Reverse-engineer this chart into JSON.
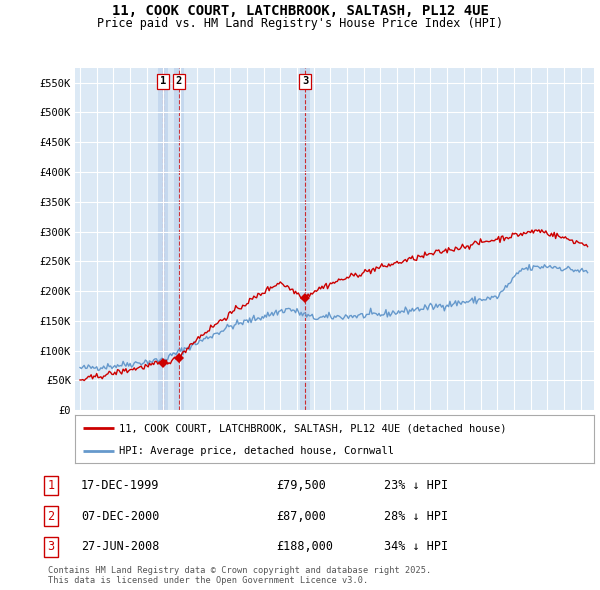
{
  "title_line1": "11, COOK COURT, LATCHBROOK, SALTASH, PL12 4UE",
  "title_line2": "Price paid vs. HM Land Registry's House Price Index (HPI)",
  "background_color": "#ffffff",
  "plot_bg_color": "#dce9f5",
  "grid_color": "#ffffff",
  "red_color": "#cc0000",
  "blue_color": "#6699cc",
  "vband_color": "#c5d8ee",
  "legend_red_label": "11, COOK COURT, LATCHBROOK, SALTASH, PL12 4UE (detached house)",
  "legend_blue_label": "HPI: Average price, detached house, Cornwall",
  "transactions": [
    {
      "num": 1,
      "date": "17-DEC-1999",
      "price": "£79,500",
      "pct": "23% ↓ HPI",
      "year": 1999.96,
      "value": 79500
    },
    {
      "num": 2,
      "date": "07-DEC-2000",
      "price": "£87,000",
      "pct": "28% ↓ HPI",
      "year": 2000.93,
      "value": 87000
    },
    {
      "num": 3,
      "date": "27-JUN-2008",
      "price": "£188,000",
      "pct": "34% ↓ HPI",
      "year": 2008.49,
      "value": 188000
    }
  ],
  "ylim": [
    0,
    575000
  ],
  "yticks": [
    0,
    50000,
    100000,
    150000,
    200000,
    250000,
    300000,
    350000,
    400000,
    450000,
    500000,
    550000
  ],
  "ytick_labels": [
    "£0",
    "£50K",
    "£100K",
    "£150K",
    "£200K",
    "£250K",
    "£300K",
    "£350K",
    "£400K",
    "£450K",
    "£500K",
    "£550K"
  ],
  "xlim_start": 1994.7,
  "xlim_end": 2025.8,
  "footer_text": "Contains HM Land Registry data © Crown copyright and database right 2025.\nThis data is licensed under the Open Government Licence v3.0."
}
